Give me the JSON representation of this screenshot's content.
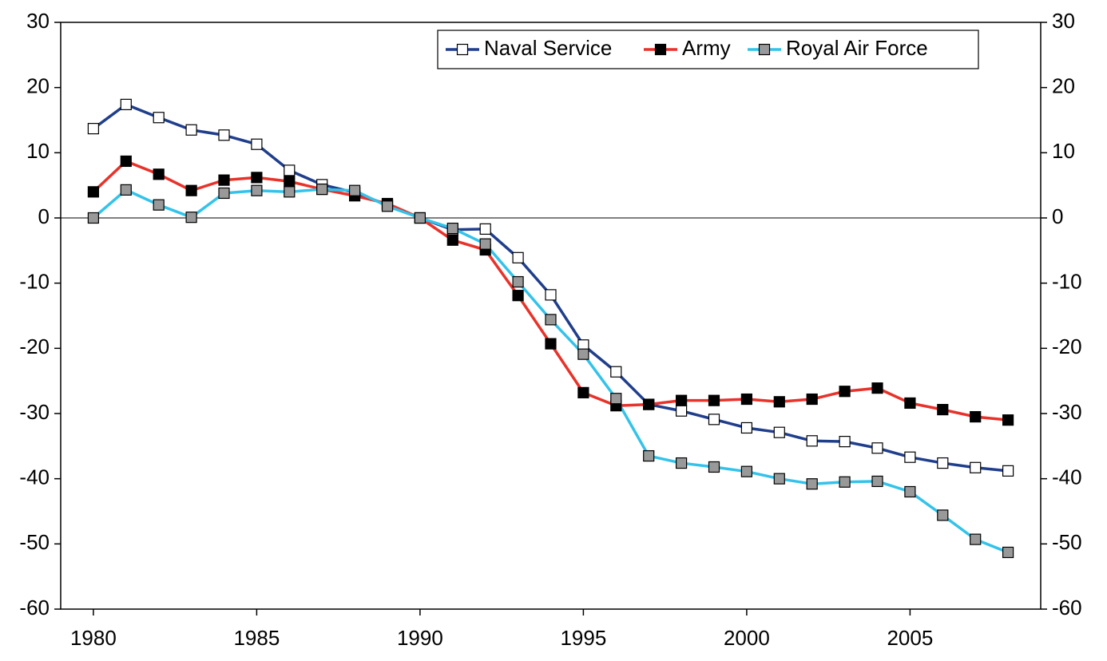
{
  "chart_data": {
    "type": "line",
    "x": [
      1980,
      1981,
      1982,
      1983,
      1984,
      1985,
      1986,
      1987,
      1988,
      1989,
      1990,
      1991,
      1992,
      1993,
      1994,
      1995,
      1996,
      1997,
      1998,
      1999,
      2000,
      2001,
      2002,
      2003,
      2004,
      2005,
      2006,
      2007,
      2008
    ],
    "series": [
      {
        "name": "Naval Service",
        "color": "#1f3e8c",
        "marker_color": "#ffffff",
        "values": [
          13.7,
          17.4,
          15.4,
          13.5,
          12.7,
          11.3,
          7.3,
          5.1,
          3.9,
          2.0,
          0,
          -1.8,
          -1.7,
          -6.1,
          -11.8,
          -19.5,
          -23.6,
          -28.6,
          -29.6,
          -30.9,
          -32.2,
          -32.9,
          -34.2,
          -34.3,
          -35.3,
          -36.7,
          -37.6,
          -38.3,
          -38.8
        ]
      },
      {
        "name": "Army",
        "color": "#e8322a",
        "marker_color": "#000000",
        "values": [
          4.0,
          8.7,
          6.7,
          4.2,
          5.8,
          6.2,
          5.6,
          4.4,
          3.4,
          2.2,
          0,
          -3.4,
          -4.9,
          -11.9,
          -19.3,
          -26.8,
          -28.8,
          -28.6,
          -28.0,
          -28.0,
          -27.8,
          -28.2,
          -27.8,
          -26.6,
          -26.1,
          -28.4,
          -29.4,
          -30.5,
          -31.0
        ]
      },
      {
        "name": "Royal Air Force",
        "color": "#33c3ea",
        "marker_color": "#999999",
        "values": [
          0,
          4.3,
          2.0,
          0.1,
          3.8,
          4.2,
          4.0,
          4.4,
          4.2,
          1.8,
          0,
          -1.6,
          -4.0,
          -9.8,
          -15.6,
          -20.9,
          -27.7,
          -36.5,
          -37.6,
          -38.2,
          -38.9,
          -40.0,
          -40.8,
          -40.5,
          -40.4,
          -42.0,
          -45.6,
          -49.3,
          -51.3
        ]
      }
    ],
    "xlim": [
      1979,
      2009
    ],
    "xticks": [
      1980,
      1985,
      1990,
      1995,
      2000,
      2005
    ],
    "ylim": [
      -60,
      30
    ],
    "yticks": [
      -60,
      -50,
      -40,
      -30,
      -20,
      -10,
      0,
      10,
      20,
      30
    ],
    "y2lim": [
      -60,
      30
    ],
    "y2ticks": [
      -60,
      -50,
      -40,
      -30,
      -20,
      -10,
      0,
      10,
      20,
      30
    ],
    "legend": "top-right"
  }
}
